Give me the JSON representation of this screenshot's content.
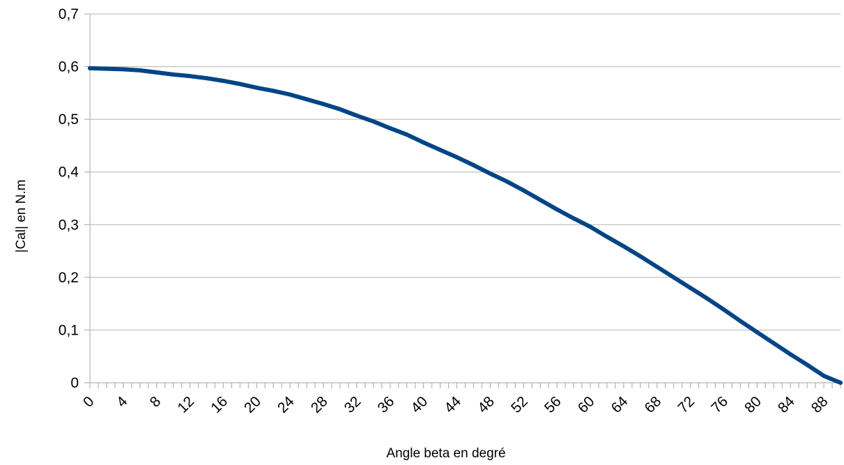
{
  "chart_data": {
    "type": "line",
    "title": "",
    "xlabel": "Angle beta en degré",
    "ylabel": "|Cal| en N.m",
    "xlim": [
      0,
      90
    ],
    "ylim": [
      0,
      0.7
    ],
    "x_tick_labels": [
      "0",
      "4",
      "8",
      "12",
      "16",
      "20",
      "24",
      "28",
      "32",
      "36",
      "40",
      "44",
      "48",
      "52",
      "56",
      "60",
      "64",
      "68",
      "72",
      "76",
      "80",
      "84",
      "88"
    ],
    "y_tick_labels": [
      "0",
      "0,1",
      "0,2",
      "0,3",
      "0,4",
      "0,5",
      "0,6",
      "0,7"
    ],
    "grid": "horizontal",
    "legend": "none",
    "series": [
      {
        "color": "#004586",
        "x": [
          0,
          2,
          4,
          6,
          8,
          10,
          12,
          14,
          16,
          18,
          20,
          22,
          24,
          26,
          28,
          30,
          32,
          34,
          36,
          38,
          40,
          42,
          44,
          46,
          48,
          50,
          52,
          54,
          56,
          58,
          60,
          62,
          64,
          66,
          68,
          70,
          72,
          74,
          76,
          78,
          80,
          82,
          84,
          86,
          88,
          90
        ],
        "values": [
          0.597,
          0.596,
          0.595,
          0.593,
          0.589,
          0.585,
          0.582,
          0.578,
          0.573,
          0.567,
          0.56,
          0.554,
          0.547,
          0.538,
          0.529,
          0.519,
          0.507,
          0.496,
          0.483,
          0.471,
          0.456,
          0.442,
          0.428,
          0.413,
          0.397,
          0.382,
          0.365,
          0.347,
          0.329,
          0.312,
          0.296,
          0.277,
          0.259,
          0.24,
          0.22,
          0.2,
          0.18,
          0.16,
          0.139,
          0.117,
          0.096,
          0.075,
          0.054,
          0.034,
          0.013,
          0.0
        ]
      }
    ]
  }
}
